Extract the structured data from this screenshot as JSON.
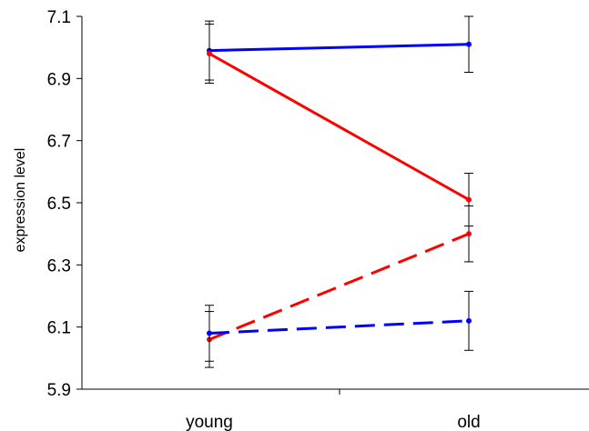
{
  "chart_data": {
    "type": "line",
    "categories": [
      "young",
      "old"
    ],
    "ylabel": "expression level",
    "xlabel": "",
    "ylim": [
      5.9,
      7.1
    ],
    "yticks": [
      "5.9",
      "6.1",
      "6.3",
      "6.5",
      "6.7",
      "6.9",
      "7.1"
    ],
    "grid": false,
    "legend": "none",
    "series": [
      {
        "color": "#0000ff",
        "dash": "solid",
        "values": [
          6.99,
          7.01
        ],
        "error": [
          0.095,
          0.09
        ]
      },
      {
        "color": "#ff0000",
        "dash": "solid",
        "values": [
          6.98,
          6.51
        ],
        "error": [
          0.095,
          0.085
        ]
      },
      {
        "color": "#ff0000",
        "dash": "dashed",
        "values": [
          6.06,
          6.4
        ],
        "error": [
          0.09,
          0.09
        ]
      },
      {
        "color": "#0000ff",
        "dash": "dashed",
        "values": [
          6.08,
          6.12
        ],
        "error": [
          0.09,
          0.095
        ]
      }
    ]
  }
}
